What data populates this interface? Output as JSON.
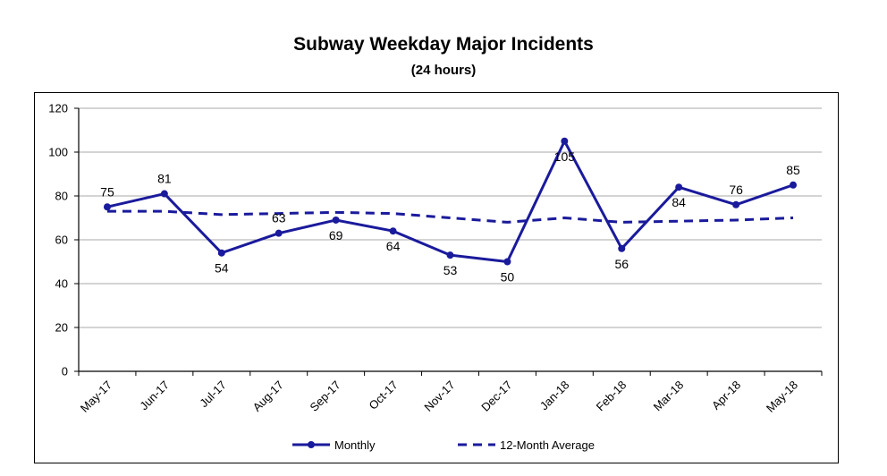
{
  "chart_data": {
    "type": "line",
    "title": "Subway Weekday Major Incidents",
    "subtitle": "(24 hours)",
    "categories": [
      "May-17",
      "Jun-17",
      "Jul-17",
      "Aug-17",
      "Sep-17",
      "Oct-17",
      "Nov-17",
      "Dec-17",
      "Jan-18",
      "Feb-18",
      "Mar-18",
      "Apr-18",
      "May-18"
    ],
    "ylim": [
      0,
      120
    ],
    "yticks": [
      0,
      20,
      40,
      60,
      80,
      100,
      120
    ],
    "grid": true,
    "legend_position": "bottom",
    "series": [
      {
        "name": "Monthly",
        "style": "solid-markers",
        "color": "#1a1a9c",
        "values": [
          75,
          81,
          54,
          63,
          69,
          64,
          53,
          50,
          105,
          56,
          84,
          76,
          85
        ]
      },
      {
        "name": "12-Month Average",
        "style": "dashed",
        "color": "#1a1a9c",
        "values": [
          73,
          73,
          71.5,
          72,
          72.5,
          72,
          70,
          68,
          70,
          68,
          68.5,
          69,
          70
        ]
      }
    ]
  }
}
